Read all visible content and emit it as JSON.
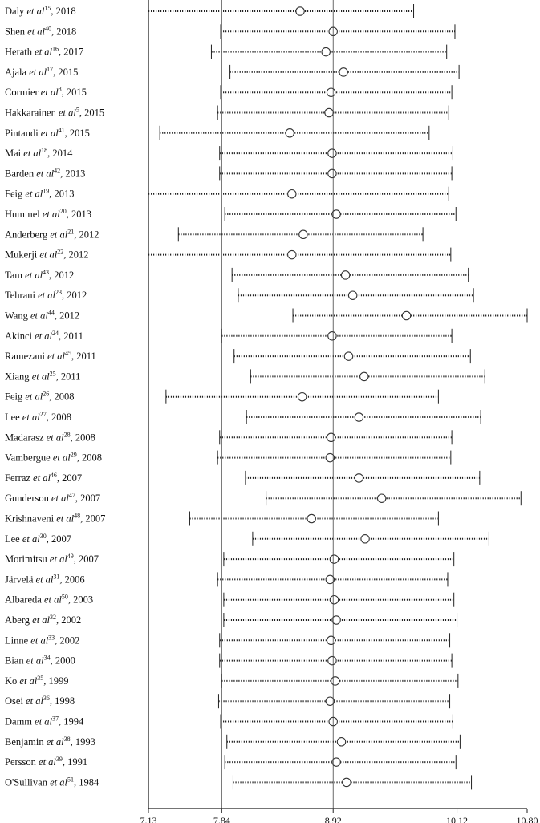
{
  "chart_data": {
    "type": "forest",
    "title": "",
    "xlabel": "",
    "ylabel": "",
    "xlim": [
      7.13,
      10.8
    ],
    "xticks": [
      "7.13",
      "7.84",
      "8.92",
      "10.12",
      "10.80"
    ],
    "reference_lines": [
      7.84,
      8.92,
      10.12
    ],
    "studies": [
      {
        "author": "Daly",
        "ref": "15",
        "year": "2018",
        "low": 7.13,
        "est": 8.6,
        "high": 9.7
      },
      {
        "author": "Shen",
        "ref": "40",
        "year": "2018",
        "low": 7.83,
        "est": 8.92,
        "high": 10.1
      },
      {
        "author": "Herath",
        "ref": "16",
        "year": "2017",
        "low": 7.74,
        "est": 8.85,
        "high": 10.02
      },
      {
        "author": "Ajala",
        "ref": "17",
        "year": "2015",
        "low": 7.92,
        "est": 9.02,
        "high": 10.14
      },
      {
        "author": "Cormier",
        "ref": "8",
        "year": "2015",
        "low": 7.83,
        "est": 8.9,
        "high": 10.07
      },
      {
        "author": "Hakkarainen",
        "ref": "5",
        "year": "2015",
        "low": 7.8,
        "est": 8.88,
        "high": 10.04
      },
      {
        "author": "Pintaudi",
        "ref": "41",
        "year": "2015",
        "low": 7.24,
        "est": 8.5,
        "high": 9.85
      },
      {
        "author": "Mai",
        "ref": "18",
        "year": "2014",
        "low": 7.82,
        "est": 8.91,
        "high": 10.08
      },
      {
        "author": "Barden",
        "ref": "42",
        "year": "2013",
        "low": 7.82,
        "est": 8.91,
        "high": 10.07
      },
      {
        "author": "Feig",
        "ref": "19",
        "year": "2013",
        "low": 7.13,
        "est": 8.52,
        "high": 10.04
      },
      {
        "author": "Hummel",
        "ref": "20",
        "year": "2013",
        "low": 7.87,
        "est": 8.95,
        "high": 10.11
      },
      {
        "author": "Anderberg",
        "ref": "21",
        "year": "2012",
        "low": 7.42,
        "est": 8.63,
        "high": 9.79
      },
      {
        "author": "Mukerji",
        "ref": "22",
        "year": "2012",
        "low": 7.13,
        "est": 8.52,
        "high": 10.06
      },
      {
        "author": "Tam",
        "ref": "43",
        "year": "2012",
        "low": 7.94,
        "est": 9.04,
        "high": 10.23
      },
      {
        "author": "Tehrani",
        "ref": "23",
        "year": "2012",
        "low": 8.0,
        "est": 9.11,
        "high": 10.28
      },
      {
        "author": "Wang",
        "ref": "44",
        "year": "2012",
        "low": 8.53,
        "est": 9.63,
        "high": 10.8
      },
      {
        "author": "Akinci",
        "ref": "24",
        "year": "2011",
        "low": 7.84,
        "est": 8.91,
        "high": 10.07
      },
      {
        "author": "Ramezani",
        "ref": "45",
        "year": "2011",
        "low": 7.96,
        "est": 9.07,
        "high": 10.25
      },
      {
        "author": "Xiang",
        "ref": "25",
        "year": "2011",
        "low": 8.12,
        "est": 9.22,
        "high": 10.39
      },
      {
        "author": "Feig",
        "ref": "26",
        "year": "2008",
        "low": 7.3,
        "est": 8.62,
        "high": 9.94
      },
      {
        "author": "Lee",
        "ref": "27",
        "year": "2008",
        "low": 8.08,
        "est": 9.17,
        "high": 10.35
      },
      {
        "author": "Madarasz",
        "ref": "28",
        "year": "2008",
        "low": 7.82,
        "est": 8.9,
        "high": 10.07
      },
      {
        "author": "Vambergue",
        "ref": "29",
        "year": "2008",
        "low": 7.8,
        "est": 8.89,
        "high": 10.06
      },
      {
        "author": "Ferraz",
        "ref": "46",
        "year": "2007",
        "low": 8.07,
        "est": 9.17,
        "high": 10.34
      },
      {
        "author": "Gunderson",
        "ref": "47",
        "year": "2007",
        "low": 8.27,
        "est": 9.39,
        "high": 10.74
      },
      {
        "author": "Krishnaveni",
        "ref": "48",
        "year": "2007",
        "low": 7.53,
        "est": 8.71,
        "high": 9.94
      },
      {
        "author": "Lee",
        "ref": "30",
        "year": "2007",
        "low": 8.14,
        "est": 9.23,
        "high": 10.43
      },
      {
        "author": "Morimitsu",
        "ref": "49",
        "year": "2007",
        "low": 7.86,
        "est": 8.93,
        "high": 10.09
      },
      {
        "author": "Järvelä",
        "ref": "31",
        "year": "2006",
        "low": 7.8,
        "est": 8.89,
        "high": 10.03
      },
      {
        "author": "Albareda",
        "ref": "50",
        "year": "2003",
        "low": 7.86,
        "est": 8.93,
        "high": 10.09
      },
      {
        "author": "Aberg",
        "ref": "32",
        "year": "2002",
        "low": 7.86,
        "est": 8.95,
        "high": 10.12
      },
      {
        "author": "Linne",
        "ref": "33",
        "year": "2002",
        "low": 7.82,
        "est": 8.9,
        "high": 10.05
      },
      {
        "author": "Bian",
        "ref": "34",
        "year": "2000",
        "low": 7.82,
        "est": 8.91,
        "high": 10.07
      },
      {
        "author": "Ko",
        "ref": "35",
        "year": "1999",
        "low": 7.84,
        "est": 8.94,
        "high": 10.13
      },
      {
        "author": "Osei",
        "ref": "36",
        "year": "1998",
        "low": 7.81,
        "est": 8.89,
        "high": 10.05
      },
      {
        "author": "Damm",
        "ref": "37",
        "year": "1994",
        "low": 7.83,
        "est": 8.92,
        "high": 10.08
      },
      {
        "author": "Benjamin",
        "ref": "38",
        "year": "1993",
        "low": 7.89,
        "est": 9.0,
        "high": 10.15
      },
      {
        "author": "Persson",
        "ref": "39",
        "year": "1991",
        "low": 7.87,
        "est": 8.95,
        "high": 10.11
      },
      {
        "author": "O'Sullivan",
        "ref": "51",
        "year": "1984",
        "low": 7.95,
        "est": 9.05,
        "high": 10.26
      }
    ]
  },
  "labels": {
    "etal": "et al"
  },
  "colors": {
    "line": "#222222",
    "ref_line": "#444444",
    "marker": "#333333"
  }
}
